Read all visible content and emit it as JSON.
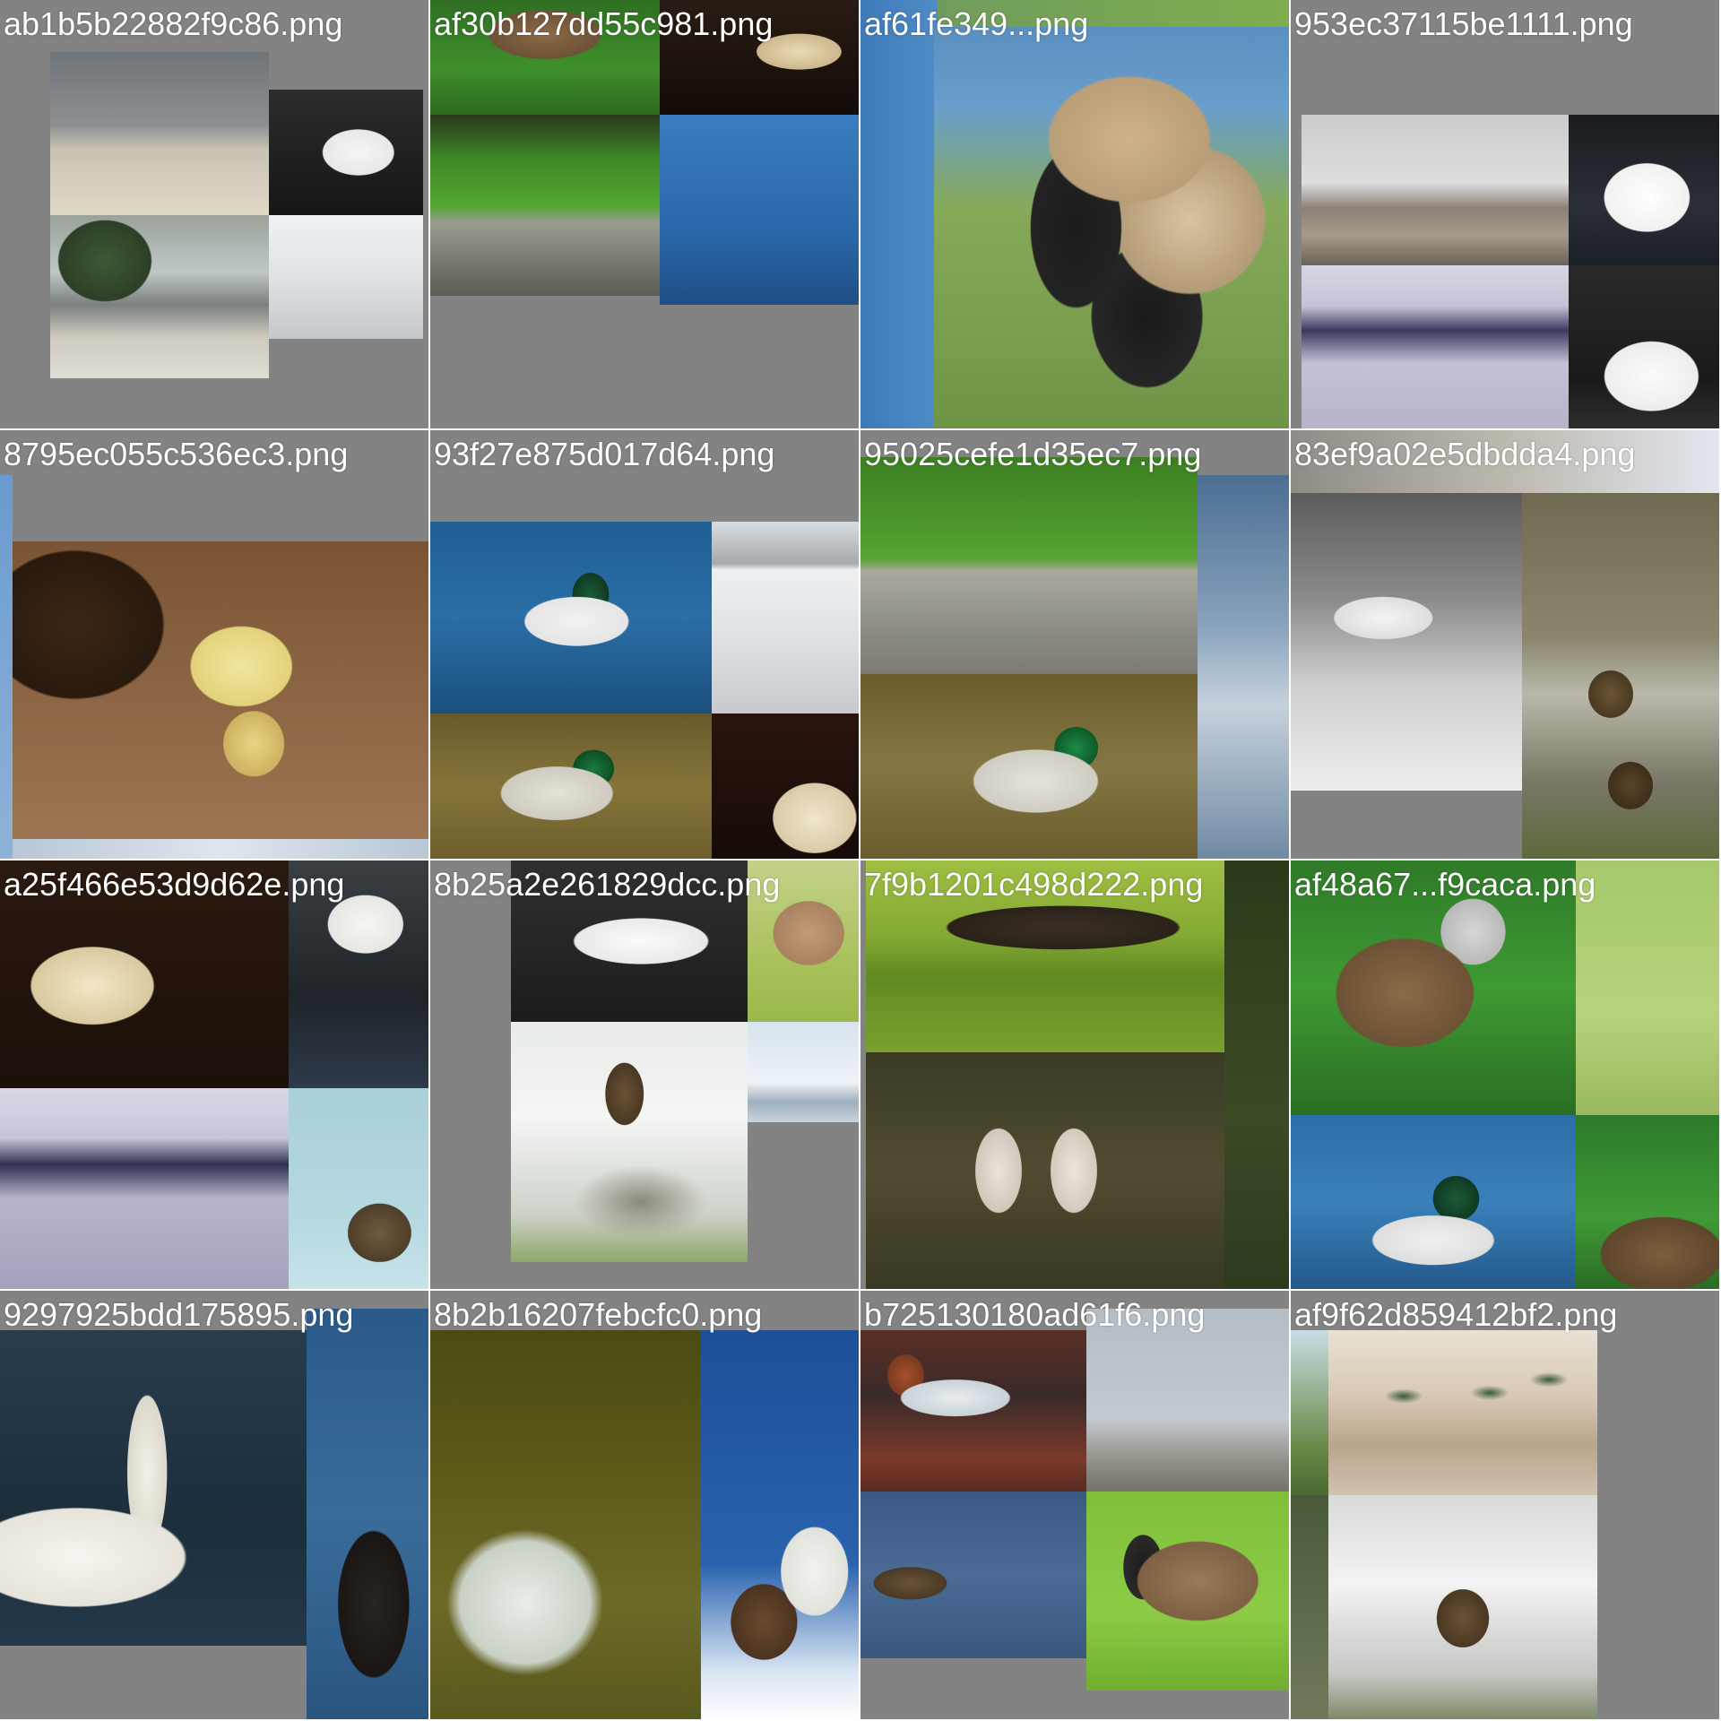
{
  "grid": {
    "background_color": "#838383",
    "cells": [
      {
        "filename": "ab1b5b22882f9c86.png",
        "scenes": [
          "canada goose and swan on shore",
          "mute swan swimming",
          "tree by pond with geese",
          "distant bird on water"
        ]
      },
      {
        "filename": "af30b127dd55c981.png",
        "scenes": [
          "female mallard among leaves",
          "white duck on dark water",
          "ducks with ducklings on grass by wall",
          "canada goose with goslings on water"
        ]
      },
      {
        "filename": "af61fe349...png",
        "scenes": [
          "canada geese grazing on grass by water"
        ]
      },
      {
        "filename": "953ec37115be1111.png",
        "scenes": [
          "cormorant drying wings on beach",
          "mute swan on water",
          "mandarin ducks by pond",
          "white duck on water"
        ]
      },
      {
        "filename": "8795ec055c536ec3.png",
        "scenes": [
          "yellow ducklings on dirt"
        ]
      },
      {
        "filename": "93f27e875d017d64.png",
        "scenes": [
          "common merganser on water",
          "flock of swans",
          "mallard drake on water",
          "white duck on dark water"
        ]
      },
      {
        "filename": "95025cefe1d35ec7.png",
        "scenes": [
          "ducks with ducklings on grass by wall",
          "mallard drake swimming",
          "rippled water"
        ]
      },
      {
        "filename": "83ef9a02e5dbdda4.png",
        "scenes": [
          "swan with reflection in black and white",
          "duck and duckling in water"
        ]
      },
      {
        "filename": "a25f466e53d9d62e.png",
        "scenes": [
          "white duck on dark water",
          "swan on water",
          "mandarin ducks by pond",
          "canada goose"
        ]
      },
      {
        "filename": "8b25a2e261829dcc.png",
        "scenes": [
          "smew on water",
          "goose on grass",
          "duck with ducklings in water",
          "water surface"
        ]
      },
      {
        "filename": "7f9b1201c498d222.png",
        "scenes": [
          "grebe with chicks",
          "great crested grebes courting"
        ]
      },
      {
        "filename": "af48a67...f9caca.png",
        "scenes": [
          "mottled duck in leaves",
          "duck on grass",
          "merganser on water",
          "duck in leaves"
        ]
      },
      {
        "filename": "9297925bdd175895.png",
        "scenes": [
          "mute swan on water",
          "canada goose on water"
        ]
      },
      {
        "filename": "8b2b16207febcfc0.png",
        "scenes": [
          "duck splashing in water",
          "swan and goose on icy water"
        ]
      },
      {
        "filename": "b725130180ad61f6.png",
        "scenes": [
          "merganser on water",
          "ducks on lake",
          "grebe on water",
          "canada goose on grass"
        ]
      },
      {
        "filename": "af9f62d859412bf2.png",
        "scenes": [
          "ducks flying over reeds",
          "duck with duckling in water"
        ]
      }
    ]
  }
}
